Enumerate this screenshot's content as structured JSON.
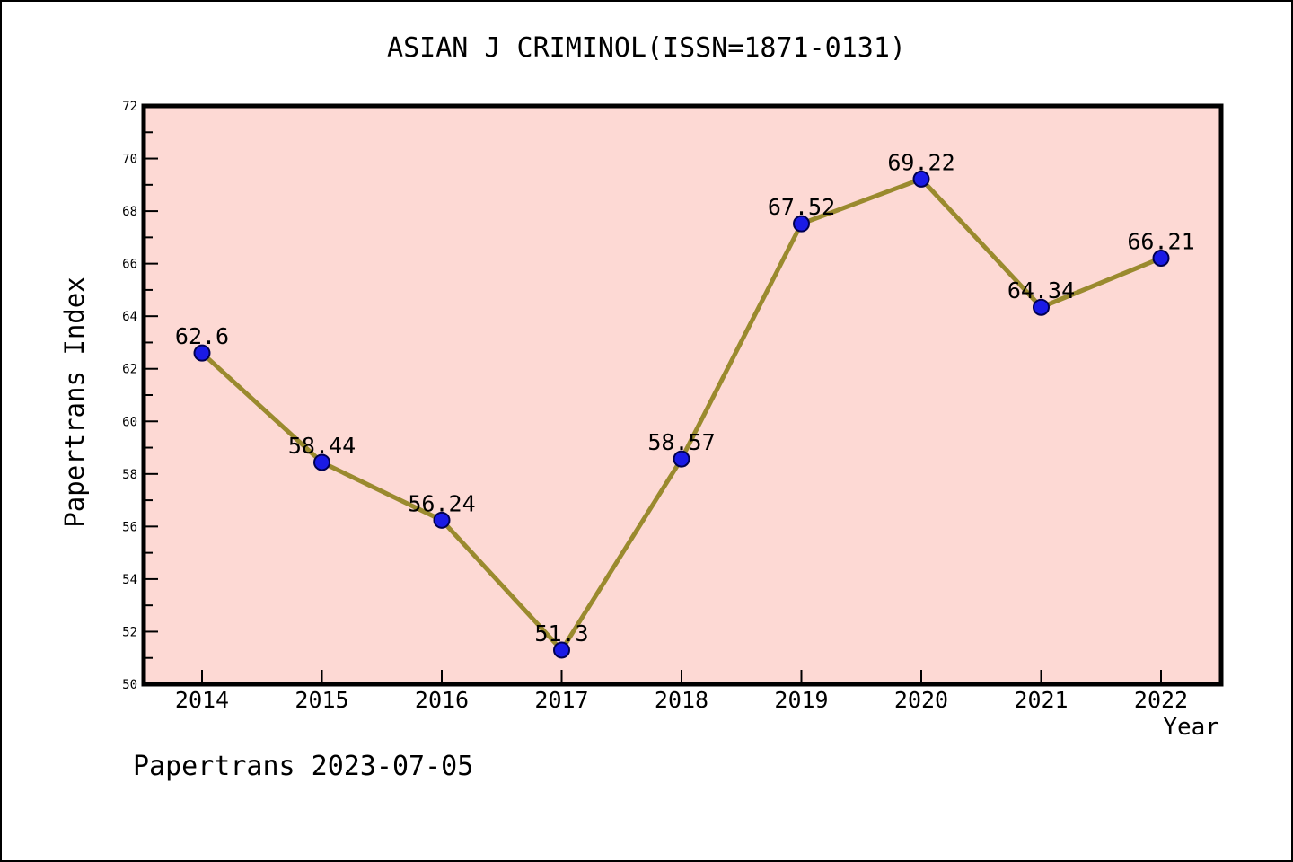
{
  "chart_data": {
    "type": "line",
    "title": "ASIAN J CRIMINOL(ISSN=1871-0131)",
    "xlabel": "Year",
    "ylabel": "Papertrans Index",
    "footer": "Papertrans 2023-07-05",
    "x": [
      "2014",
      "2015",
      "2016",
      "2017",
      "2018",
      "2019",
      "2020",
      "2021",
      "2022"
    ],
    "series": [
      {
        "name": "Papertrans Index",
        "values": [
          62.6,
          58.44,
          56.24,
          51.3,
          58.57,
          67.52,
          69.22,
          64.34,
          66.21
        ],
        "point_labels": [
          "62.6",
          "58.44",
          "56.24",
          "51.3",
          "58.57",
          "67.52",
          "69.22",
          "64.34",
          "66.21"
        ]
      }
    ],
    "ylim": [
      50,
      72
    ],
    "y_ticks": [
      50,
      52,
      54,
      56,
      58,
      60,
      62,
      64,
      66,
      68,
      70,
      72
    ],
    "y_minor_step": 1,
    "grid": false,
    "legend": "none",
    "colors": {
      "page_bg": "#FFFFFF",
      "plot_bg": "#FDD9D4",
      "frame": "#000000",
      "line": "#9A8A2E",
      "marker": "#1A1AE6",
      "marker_edge": "#000050",
      "text": "#000000"
    }
  }
}
